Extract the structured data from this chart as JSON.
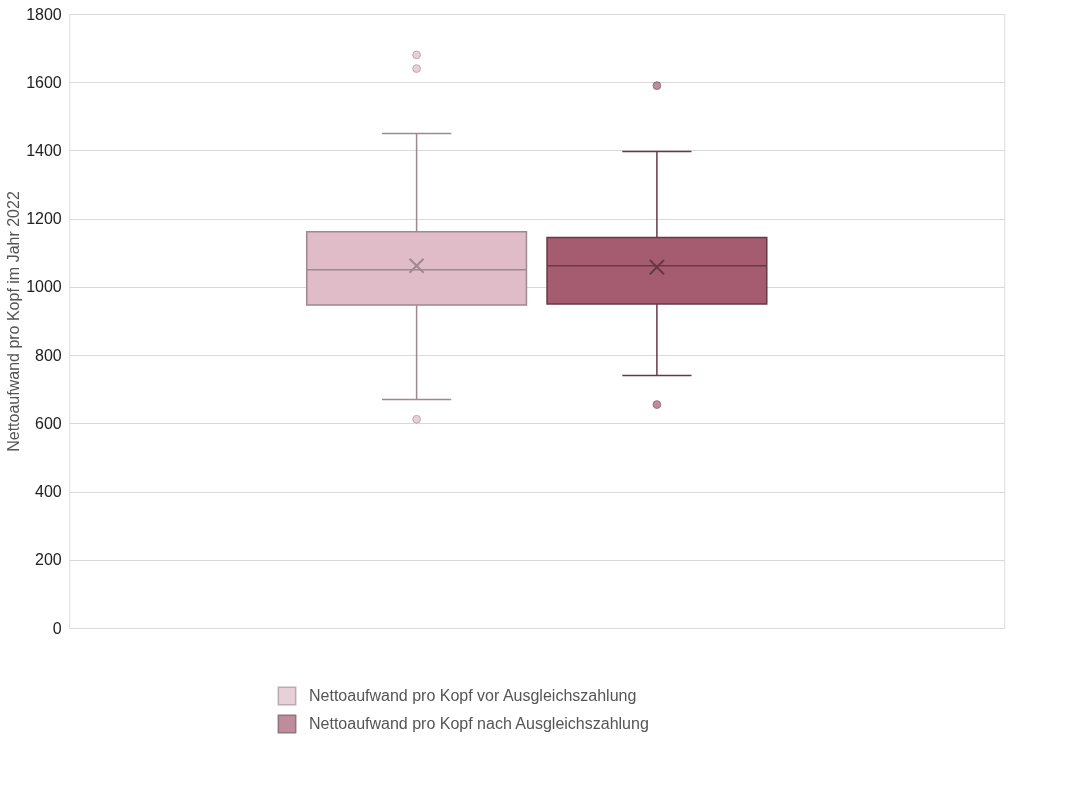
{
  "chart_data": {
    "type": "box",
    "ylabel": "Nettoaufwand pro Kopf im Jahr 2022",
    "categories": [
      null
    ],
    "series": [
      {
        "name": "Nettoaufwand pro Kopf vor Ausgleichszahlung",
        "color": "#dfbcc8",
        "boxes": [
          {
            "low": 670,
            "q1": 947,
            "median": 1050,
            "q3": 1162,
            "high": 1450,
            "mean": 1062,
            "outliers": [
              1680,
              1640,
              612
            ]
          }
        ]
      },
      {
        "name": "Nettoaufwand pro Kopf nach Ausgleichszahlung",
        "color": "#a65c70",
        "boxes": [
          {
            "low": 740,
            "q1": 950,
            "median": 1062,
            "q3": 1145,
            "high": 1397,
            "mean": 1058,
            "outliers": [
              1590,
              655
            ]
          }
        ]
      }
    ],
    "ylim": [
      0,
      1800
    ],
    "yticks": [
      0,
      200,
      400,
      600,
      800,
      1000,
      1200,
      1400,
      1600,
      1800
    ],
    "grid": "y",
    "legend": "bottom",
    "tick_labels": "y",
    "marker": "circle"
  }
}
